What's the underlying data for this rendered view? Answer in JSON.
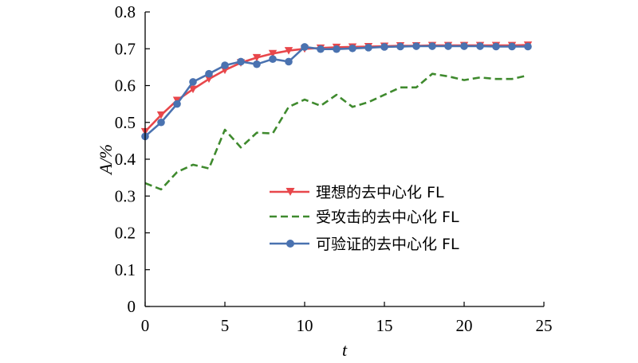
{
  "chart_data": {
    "type": "line",
    "xlabel": "t",
    "ylabel": "A/%",
    "xlim": [
      0,
      25
    ],
    "ylim": [
      0,
      0.8
    ],
    "xticks": [
      0,
      5,
      10,
      15,
      20,
      25
    ],
    "yticks": [
      0,
      0.1,
      0.2,
      0.3,
      0.4,
      0.5,
      0.6,
      0.7,
      0.8
    ],
    "grid": false,
    "legend_position": "center-right",
    "series": [
      {
        "name": "理想的去中心化 FL",
        "color": "#e8474b",
        "line_style": "solid",
        "marker": "triangle-down",
        "x": [
          0,
          1,
          2,
          3,
          4,
          5,
          6,
          7,
          8,
          9,
          10,
          11,
          12,
          13,
          14,
          15,
          16,
          17,
          18,
          19,
          20,
          21,
          22,
          23,
          24
        ],
        "y": [
          0.475,
          0.52,
          0.56,
          0.59,
          0.618,
          0.642,
          0.662,
          0.676,
          0.687,
          0.695,
          0.7,
          0.702,
          0.704,
          0.705,
          0.706,
          0.707,
          0.708,
          0.708,
          0.709,
          0.709,
          0.709,
          0.709,
          0.709,
          0.709,
          0.71
        ]
      },
      {
        "name": "受攻击的去中心化 FL",
        "color": "#3f8a2e",
        "line_style": "dashed",
        "marker": "none",
        "x": [
          0,
          1,
          2,
          3,
          4,
          5,
          6,
          7,
          8,
          9,
          10,
          11,
          12,
          13,
          14,
          15,
          16,
          17,
          18,
          19,
          20,
          21,
          22,
          23,
          24
        ],
        "y": [
          0.335,
          0.318,
          0.365,
          0.385,
          0.375,
          0.48,
          0.432,
          0.472,
          0.47,
          0.542,
          0.562,
          0.545,
          0.575,
          0.542,
          0.555,
          0.575,
          0.595,
          0.595,
          0.632,
          0.625,
          0.615,
          0.622,
          0.618,
          0.618,
          0.628
        ]
      },
      {
        "name": "可验证的去中心化 FL",
        "color": "#4a72b0",
        "line_style": "solid",
        "marker": "circle",
        "x": [
          0,
          1,
          2,
          3,
          4,
          5,
          6,
          7,
          8,
          9,
          10,
          11,
          12,
          13,
          14,
          15,
          16,
          17,
          18,
          19,
          20,
          21,
          22,
          23,
          24
        ],
        "y": [
          0.462,
          0.5,
          0.55,
          0.61,
          0.632,
          0.655,
          0.665,
          0.658,
          0.672,
          0.665,
          0.705,
          0.699,
          0.699,
          0.701,
          0.703,
          0.705,
          0.706,
          0.707,
          0.707,
          0.707,
          0.707,
          0.707,
          0.706,
          0.706,
          0.706
        ]
      }
    ]
  }
}
